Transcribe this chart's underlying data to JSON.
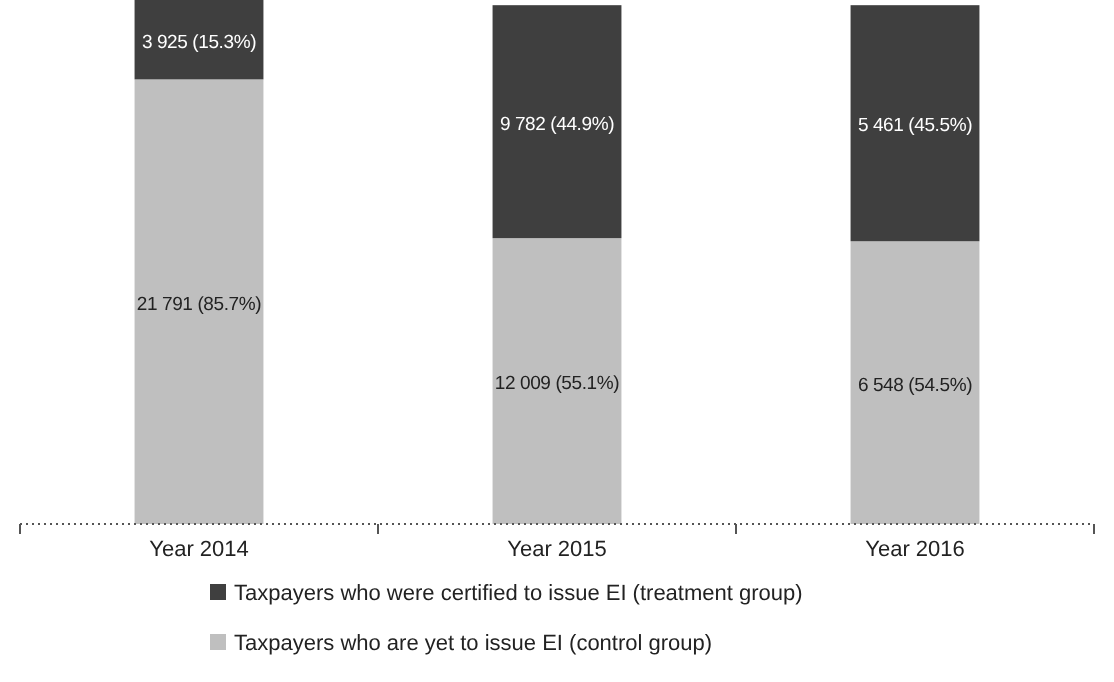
{
  "chart_data": {
    "type": "bar",
    "stacked": true,
    "categories": [
      "Year 2014",
      "Year 2015",
      "Year 2016"
    ],
    "ylim": [
      0,
      101
    ],
    "legend": "bottom",
    "series": [
      {
        "name": "Taxpayers who are yet to issue EI (control group)",
        "color": "#bfbfbf",
        "values": [
          85.7,
          55.1,
          54.5
        ],
        "value_labels": [
          "21 791 (85.7%)",
          "12 009 (55.1%)",
          "6 548 (54.5%)"
        ]
      },
      {
        "name": "Taxpayers who were certified to issue EI (treatment group)",
        "color": "#3f3f3f",
        "values": [
          15.3,
          44.9,
          45.5
        ],
        "value_labels": [
          "3 925 (15.3%)",
          "9 782 (44.9%)",
          "5 461 (45.5%)"
        ]
      }
    ]
  }
}
